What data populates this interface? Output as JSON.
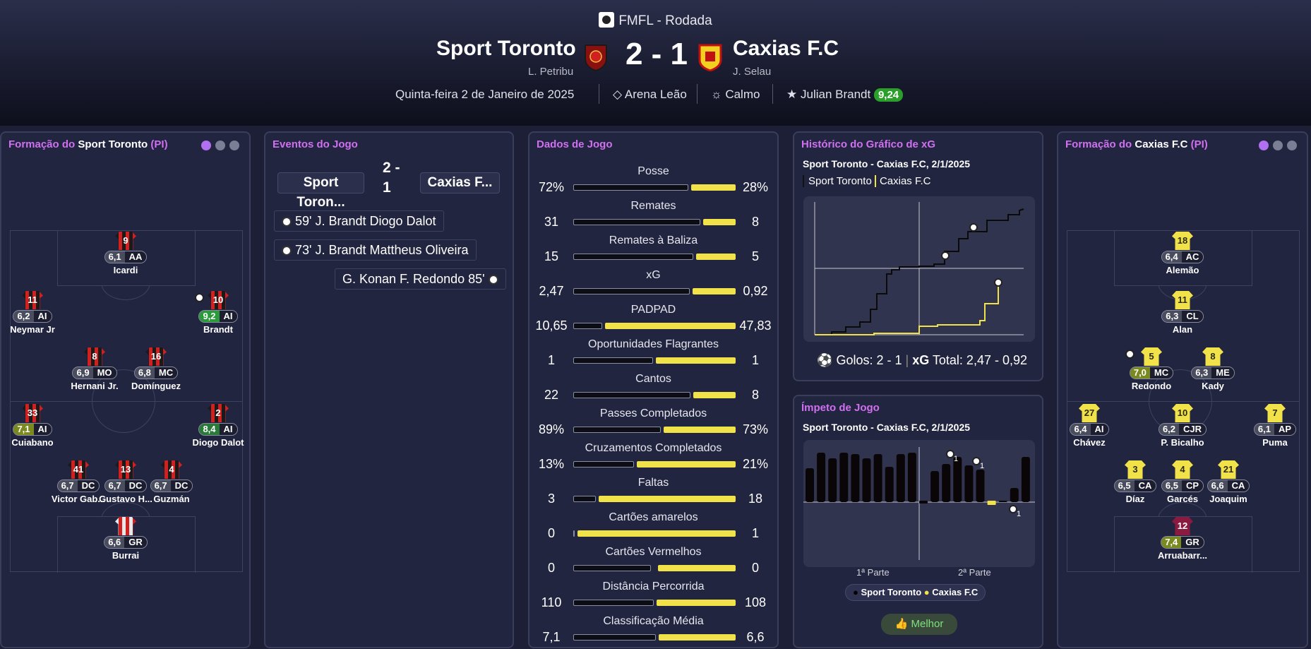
{
  "header": {
    "competition": "FMFL - Rodada",
    "home_team": "Sport Toronto",
    "home_manager": "L. Petribu",
    "score": "2 - 1",
    "away_team": "Caxias F.C",
    "away_manager": "J. Selau",
    "date": "Quinta-feira 2 de Janeiro de 2025",
    "stadium": "Arena Leão",
    "weather": "Calmo",
    "motm_name": "Julian Brandt",
    "motm_rating": "9,24",
    "colors": {
      "home": "#d02020",
      "away": "#f2e24a",
      "accent": "#d070f0"
    }
  },
  "home_lineup": {
    "title_prefix": "Formação do ",
    "team": "Sport Toronto",
    "suffix": " (PI)",
    "players": [
      {
        "num": "9",
        "rating": "6,1",
        "pos": "AA",
        "name": "Icardi"
      },
      {
        "num": "11",
        "rating": "6,2",
        "pos": "AI",
        "name": "Neymar Jr"
      },
      {
        "num": "10",
        "rating": "9,2",
        "pos": "AI",
        "name": "Brandt"
      },
      {
        "num": "8",
        "rating": "6,9",
        "pos": "MO",
        "name": "Hernani Jr."
      },
      {
        "num": "16",
        "rating": "6,8",
        "pos": "MC",
        "name": "Domínguez"
      },
      {
        "num": "33",
        "rating": "7,1",
        "pos": "AI",
        "name": "Cuiabano"
      },
      {
        "num": "2",
        "rating": "8,4",
        "pos": "AI",
        "name": "Diogo Dalot"
      },
      {
        "num": "41",
        "rating": "6,7",
        "pos": "DC",
        "name": "Victor Gab..."
      },
      {
        "num": "13",
        "rating": "6,7",
        "pos": "DC",
        "name": "Gustavo H..."
      },
      {
        "num": "4",
        "rating": "6,7",
        "pos": "DC",
        "name": "Guzmán"
      },
      {
        "num": "",
        "rating": "6,6",
        "pos": "GR",
        "name": "Burrai"
      }
    ]
  },
  "events": {
    "title": "Eventos do Jogo",
    "home_team_short": "Sport Toron...",
    "away_team_short": "Caxias F...",
    "score_top": "2 -",
    "score_bottom": "1",
    "items": [
      {
        "text": "59' J. Brandt Diogo Dalot",
        "side": "home"
      },
      {
        "text": "73' J. Brandt Mattheus Oliveira",
        "side": "home"
      },
      {
        "text": "G. Konan F. Redondo 85'",
        "side": "away"
      }
    ]
  },
  "stats": {
    "title": "Dados de Jogo",
    "rows": [
      {
        "label": "Posse",
        "home": "72%",
        "away": "28%",
        "h": 72,
        "a": 28
      },
      {
        "label": "Remates",
        "home": "31",
        "away": "8",
        "h": 31,
        "a": 8
      },
      {
        "label": "Remates à Baliza",
        "home": "15",
        "away": "5",
        "h": 15,
        "a": 5
      },
      {
        "label": "xG",
        "home": "2,47",
        "away": "0,92",
        "h": 2.47,
        "a": 0.92
      },
      {
        "label": "PADPAD",
        "home": "10,65",
        "away": "47,83",
        "h": 10.65,
        "a": 47.83
      },
      {
        "label": "Oportunidades Flagrantes",
        "home": "1",
        "away": "1",
        "h": 1,
        "a": 1
      },
      {
        "label": "Cantos",
        "home": "22",
        "away": "8",
        "h": 22,
        "a": 8
      },
      {
        "label": "Passes Completados",
        "home": "89%",
        "away": "73%",
        "h": 89,
        "a": 73
      },
      {
        "label": "Cruzamentos Completados",
        "home": "13%",
        "away": "21%",
        "h": 13,
        "a": 21
      },
      {
        "label": "Faltas",
        "home": "3",
        "away": "18",
        "h": 3,
        "a": 18
      },
      {
        "label": "Cartões amarelos",
        "home": "0",
        "away": "1",
        "h": 0,
        "a": 1
      },
      {
        "label": "Cartões Vermelhos",
        "home": "0",
        "away": "0",
        "h": 0,
        "a": 0
      },
      {
        "label": "Distância Percorrida",
        "home": "110",
        "away": "108",
        "h": 110,
        "a": 108
      },
      {
        "label": "Classificação Média",
        "home": "7,1",
        "away": "6,6",
        "h": 7.1,
        "a": 6.6
      }
    ]
  },
  "xg_chart": {
    "title": "Histórico do Gráfico de xG",
    "subtitle": "Sport Toronto - Caxias F.C, 2/1/2025",
    "legend_home": "Sport Toronto",
    "legend_away": "Caxias F.C",
    "goals_text": "Golos: 2 - 1",
    "xg_label": "xG",
    "xg_total": "Total: 2,47 - 0,92"
  },
  "momentum": {
    "title": "Ímpeto de Jogo",
    "subtitle": "Sport Toronto - Caxias F.C, 2/1/2025",
    "first_half": "1ª Parte",
    "second_half": "2ª Parte",
    "legend_home": "Sport Toronto",
    "legend_away": "Caxias F.C",
    "button": "Melhor",
    "goal_count": "1"
  },
  "away_lineup": {
    "title_prefix": "Formação do ",
    "team": "Caxias F.C",
    "suffix": " (PI)",
    "players": [
      {
        "num": "18",
        "rating": "6,4",
        "pos": "AC",
        "name": "Alemão"
      },
      {
        "num": "11",
        "rating": "6,3",
        "pos": "CL",
        "name": "Alan"
      },
      {
        "num": "5",
        "rating": "7,0",
        "pos": "MC",
        "name": "Redondo"
      },
      {
        "num": "8",
        "rating": "6,3",
        "pos": "ME",
        "name": "Kady"
      },
      {
        "num": "27",
        "rating": "6,4",
        "pos": "AI",
        "name": "Chávez"
      },
      {
        "num": "10",
        "rating": "6,2",
        "pos": "CJR",
        "name": "P. Bicalho"
      },
      {
        "num": "7",
        "rating": "6,1",
        "pos": "AP",
        "name": "Puma"
      },
      {
        "num": "3",
        "rating": "6,5",
        "pos": "CA",
        "name": "Díaz"
      },
      {
        "num": "4",
        "rating": "6,5",
        "pos": "CP",
        "name": "Garcés"
      },
      {
        "num": "21",
        "rating": "6,6",
        "pos": "CA",
        "name": "Joaquim"
      },
      {
        "num": "12",
        "rating": "7,4",
        "pos": "GR",
        "name": "Arruabarr..."
      }
    ]
  }
}
